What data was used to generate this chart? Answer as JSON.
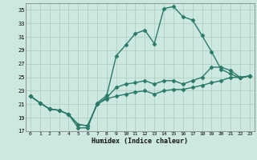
{
  "xlabel": "Humidex (Indice chaleur)",
  "bg_color": "#cce8e0",
  "grid_color": "#aaccbb",
  "line_color": "#2a7a6a",
  "xlim": [
    -0.5,
    23.5
  ],
  "ylim": [
    17,
    36
  ],
  "yticks": [
    17,
    19,
    21,
    23,
    25,
    27,
    29,
    31,
    33,
    35
  ],
  "xticks": [
    0,
    1,
    2,
    3,
    4,
    5,
    6,
    7,
    8,
    9,
    10,
    11,
    12,
    13,
    14,
    15,
    16,
    17,
    18,
    19,
    20,
    21,
    22,
    23
  ],
  "line1_x": [
    0,
    1,
    2,
    3,
    4,
    5,
    6,
    7,
    8,
    9,
    10,
    11,
    12,
    13,
    14,
    15,
    16,
    17,
    18,
    19,
    20,
    21,
    22,
    23
  ],
  "line1_y": [
    22.2,
    21.2,
    20.3,
    20.1,
    19.5,
    17.5,
    17.5,
    21.2,
    22.3,
    28.2,
    29.8,
    31.5,
    32.0,
    30.0,
    35.2,
    35.5,
    34.0,
    33.5,
    31.2,
    28.8,
    26.2,
    25.5,
    24.9,
    25.2
  ],
  "line2_x": [
    0,
    1,
    2,
    3,
    4,
    5,
    6,
    7,
    8,
    9,
    10,
    11,
    12,
    13,
    14,
    15,
    16,
    17,
    18,
    19,
    20,
    21,
    22,
    23
  ],
  "line2_y": [
    22.2,
    21.2,
    20.3,
    20.1,
    19.5,
    18.0,
    17.8,
    21.0,
    22.0,
    23.5,
    24.0,
    24.2,
    24.5,
    24.0,
    24.5,
    24.5,
    24.0,
    24.5,
    25.0,
    26.5,
    26.5,
    26.0,
    25.0,
    25.2
  ],
  "line3_x": [
    0,
    1,
    2,
    3,
    4,
    5,
    6,
    7,
    8,
    9,
    10,
    11,
    12,
    13,
    14,
    15,
    16,
    17,
    18,
    19,
    20,
    21,
    22,
    23
  ],
  "line3_y": [
    22.2,
    21.2,
    20.3,
    20.1,
    19.5,
    18.0,
    17.8,
    21.0,
    21.8,
    22.2,
    22.5,
    22.8,
    23.0,
    22.5,
    23.0,
    23.2,
    23.2,
    23.5,
    23.8,
    24.2,
    24.5,
    25.0,
    25.0,
    25.2
  ],
  "marker": "D",
  "markersize": 2.5,
  "linewidth": 1.0
}
